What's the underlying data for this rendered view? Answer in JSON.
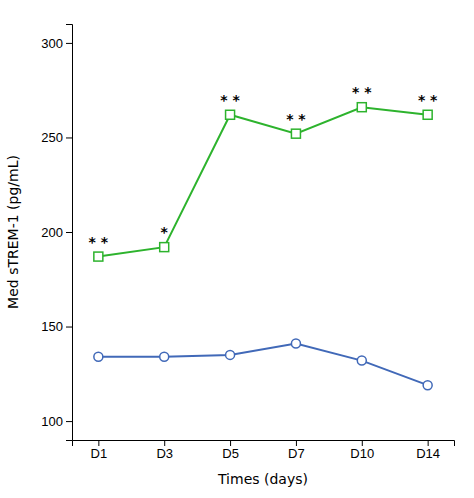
{
  "chart_data": {
    "type": "line",
    "xlabel": "Times (days)",
    "ylabel": "Med sTREM-1 (pg/mL)",
    "categories": [
      "D1",
      "D3",
      "D5",
      "D7",
      "D10",
      "D14"
    ],
    "series": [
      {
        "values": [
          187,
          192,
          262,
          252,
          266,
          262
        ],
        "color": "#2db32d",
        "marker": "square"
      },
      {
        "values": [
          134,
          134,
          135,
          141,
          132,
          119
        ],
        "color": "#4169b8",
        "marker": "circle"
      }
    ],
    "annotations": [
      {
        "x": "D1",
        "y": 187,
        "text": "* *"
      },
      {
        "x": "D3",
        "y": 192,
        "text": "*"
      },
      {
        "x": "D5",
        "y": 262,
        "text": "* *"
      },
      {
        "x": "D7",
        "y": 252,
        "text": "* *"
      },
      {
        "x": "D10",
        "y": 266,
        "text": "* *"
      },
      {
        "x": "D14",
        "y": 262,
        "text": "* *"
      }
    ],
    "ylim": [
      90,
      310
    ],
    "yticks": [
      100,
      150,
      200,
      250,
      300
    ],
    "grid": false
  }
}
